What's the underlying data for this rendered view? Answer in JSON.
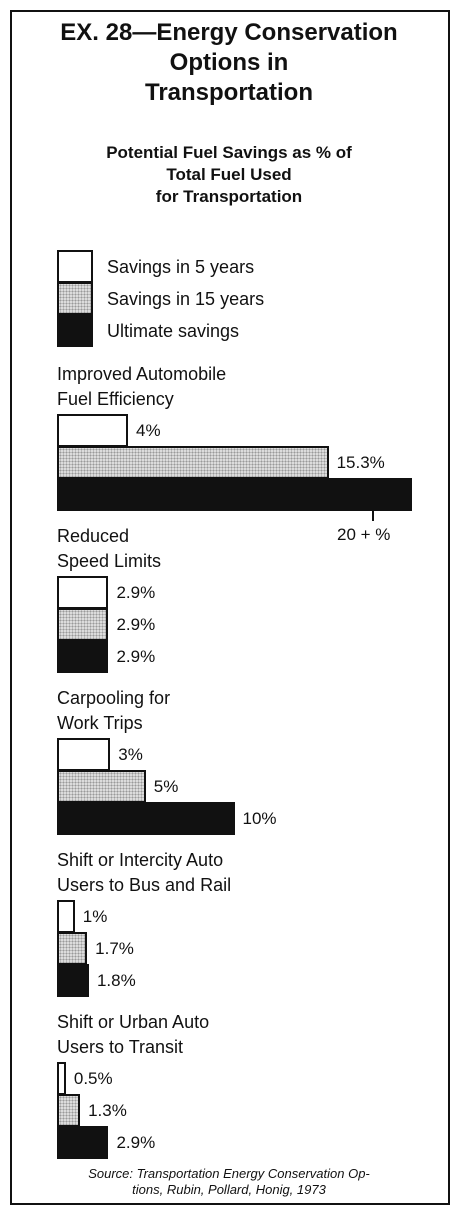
{
  "chart_data": {
    "type": "hbar-grouped",
    "title": "EX. 28—Energy Conservation\nOptions in\nTransportation",
    "subtitle": "Potential Fuel Savings as % of\nTotal Fuel Used\nfor Transportation",
    "categories": [
      "Improved Automobile\nFuel Efficiency",
      "Reduced\nSpeed Limits",
      "Carpooling for\nWork Trips",
      "Shift or Intercity Auto\nUsers to Bus and Rail",
      "Shift or Urban Auto\nUsers to Transit"
    ],
    "series": [
      {
        "name": "Savings in 5 years",
        "color": "#ffffff",
        "values": [
          4,
          2.9,
          3,
          1,
          0.5
        ],
        "value_labels": [
          "4%",
          "2.9%",
          "3%",
          "1%",
          "0.5%"
        ]
      },
      {
        "name": "Savings in 15 years",
        "color": "#dcdcdc",
        "values": [
          15.3,
          2.9,
          5,
          1.7,
          1.3
        ],
        "value_labels": [
          "15.3%",
          "2.9%",
          "5%",
          "1.7%",
          "1.3%"
        ]
      },
      {
        "name": "Ultimate savings",
        "color": "#111111",
        "values": [
          20,
          2.9,
          10,
          1.8,
          2.9
        ],
        "value_labels": [
          "20 + %",
          "2.9%",
          "10%",
          "1.8%",
          "2.9%"
        ]
      }
    ],
    "source": "Source: Transportation Energy Conservation Op-\ntions, Rubin, Pollard, Honig, 1973"
  }
}
